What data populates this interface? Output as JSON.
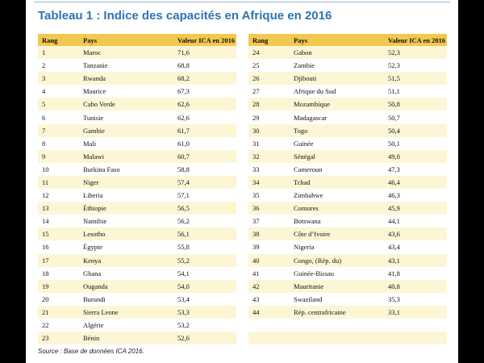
{
  "title": "Tableau 1 : Indice des capacités en Afrique en 2016",
  "columns": {
    "rank": "Rang",
    "country": "Pays",
    "value": "Valeur ICA en 2016"
  },
  "rows": [
    {
      "rank": "1",
      "country": "Maroc",
      "value": "71,6"
    },
    {
      "rank": "2",
      "country": "Tanzanie",
      "value": "68,8"
    },
    {
      "rank": "3",
      "country": "Rwanda",
      "value": "68,2"
    },
    {
      "rank": "4",
      "country": "Maurice",
      "value": "67,3"
    },
    {
      "rank": "5",
      "country": "Cabo Verde",
      "value": "62,6"
    },
    {
      "rank": "6",
      "country": "Tunisie",
      "value": "62,6"
    },
    {
      "rank": "7",
      "country": "Gambie",
      "value": "61,7"
    },
    {
      "rank": "8",
      "country": "Mali",
      "value": "61,0"
    },
    {
      "rank": "9",
      "country": "Malawi",
      "value": "60,7"
    },
    {
      "rank": "10",
      "country": "Burkina Faso",
      "value": "58,8"
    },
    {
      "rank": "11",
      "country": "Niger",
      "value": "57,4"
    },
    {
      "rank": "12",
      "country": "Liberia",
      "value": "57,1"
    },
    {
      "rank": "13",
      "country": "Éthiopie",
      "value": "56,5"
    },
    {
      "rank": "14",
      "country": "Namibie",
      "value": "56,2"
    },
    {
      "rank": "15",
      "country": "Lesotho",
      "value": "56,1"
    },
    {
      "rank": "16",
      "country": "Égypte",
      "value": "55,8"
    },
    {
      "rank": "17",
      "country": "Kenya",
      "value": "55,2"
    },
    {
      "rank": "18",
      "country": "Ghana",
      "value": "54,1"
    },
    {
      "rank": "19",
      "country": "Ouganda",
      "value": "54,0"
    },
    {
      "rank": "20",
      "country": "Burundi",
      "value": "53,4"
    },
    {
      "rank": "21",
      "country": "Sierra Leone",
      "value": "53,3"
    },
    {
      "rank": "22",
      "country": "Algérie",
      "value": "53,2"
    },
    {
      "rank": "23",
      "country": "Bénin",
      "value": "52,6"
    },
    {
      "rank": "24",
      "country": "Gabon",
      "value": "52,3"
    },
    {
      "rank": "25",
      "country": "Zambie",
      "value": "52,3"
    },
    {
      "rank": "26",
      "country": "Djibouti",
      "value": "51,5"
    },
    {
      "rank": "27",
      "country": "Afrique du Sud",
      "value": "51,1"
    },
    {
      "rank": "28",
      "country": "Mozambique",
      "value": "50,8"
    },
    {
      "rank": "29",
      "country": "Madagascar",
      "value": "50,7"
    },
    {
      "rank": "30",
      "country": "Togo",
      "value": "50,4"
    },
    {
      "rank": "31",
      "country": "Guinée",
      "value": "50,1"
    },
    {
      "rank": "32",
      "country": "Sénégal",
      "value": "49,0"
    },
    {
      "rank": "33",
      "country": "Cameroun",
      "value": "47,3"
    },
    {
      "rank": "34",
      "country": "Tchad",
      "value": "46,4"
    },
    {
      "rank": "35",
      "country": "Zimbabwe",
      "value": "46,3"
    },
    {
      "rank": "36",
      "country": "Comores",
      "value": "45,9"
    },
    {
      "rank": "37",
      "country": "Botswana",
      "value": "44,1"
    },
    {
      "rank": "38",
      "country": "Côte d’Ivoire",
      "value": "43,6"
    },
    {
      "rank": "39",
      "country": "Nigeria",
      "value": "43,4"
    },
    {
      "rank": "40",
      "country": "Congo, (Rép. du)",
      "value": "43,1"
    },
    {
      "rank": "41",
      "country": "Guinée-Bissau",
      "value": "41,8"
    },
    {
      "rank": "42",
      "country": "Mauritanie",
      "value": "40,8"
    },
    {
      "rank": "43",
      "country": "Swaziland",
      "value": "35,3"
    },
    {
      "rank": "44",
      "country": "Rép. centrafricaine",
      "value": "33,1"
    }
  ],
  "source": "Source : Base de données ICA 2016.",
  "colors": {
    "title": "#2f74b5",
    "header": "#f3c84e",
    "stripe": "#fdf6d5"
  }
}
